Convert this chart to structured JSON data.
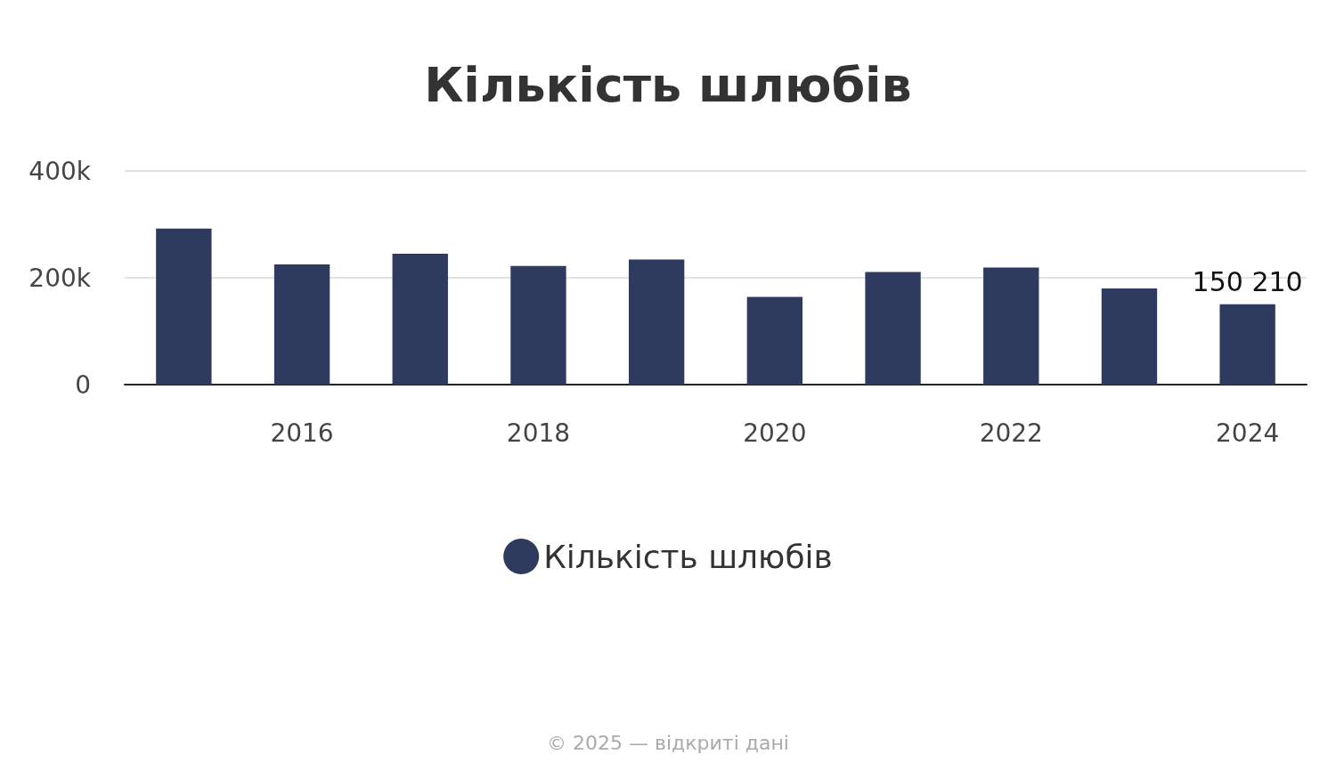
{
  "chart_data": {
    "type": "bar",
    "title": "Кількість шлюбів",
    "categories": [
      null,
      "2016",
      null,
      "2018",
      null,
      "2020",
      null,
      "2022",
      null,
      "2024"
    ],
    "series": [
      {
        "name": "Кількість шлюбів",
        "color": "#2e3b5e",
        "values": [
          292000,
          225000,
          245000,
          222000,
          234000,
          164000,
          211000,
          219000,
          180000,
          150210
        ],
        "value_labels": [
          null,
          null,
          null,
          null,
          null,
          null,
          null,
          null,
          null,
          "150 210"
        ]
      }
    ],
    "ylim": [
      0,
      400000
    ],
    "yticks": [
      0,
      {
        "value": 200000,
        "label": "200k"
      },
      {
        "value": 400000,
        "label": "400k"
      }
    ],
    "grid": "y",
    "legend": "bottom",
    "annotations": [
      "© 2025 — відкриті дані"
    ]
  }
}
